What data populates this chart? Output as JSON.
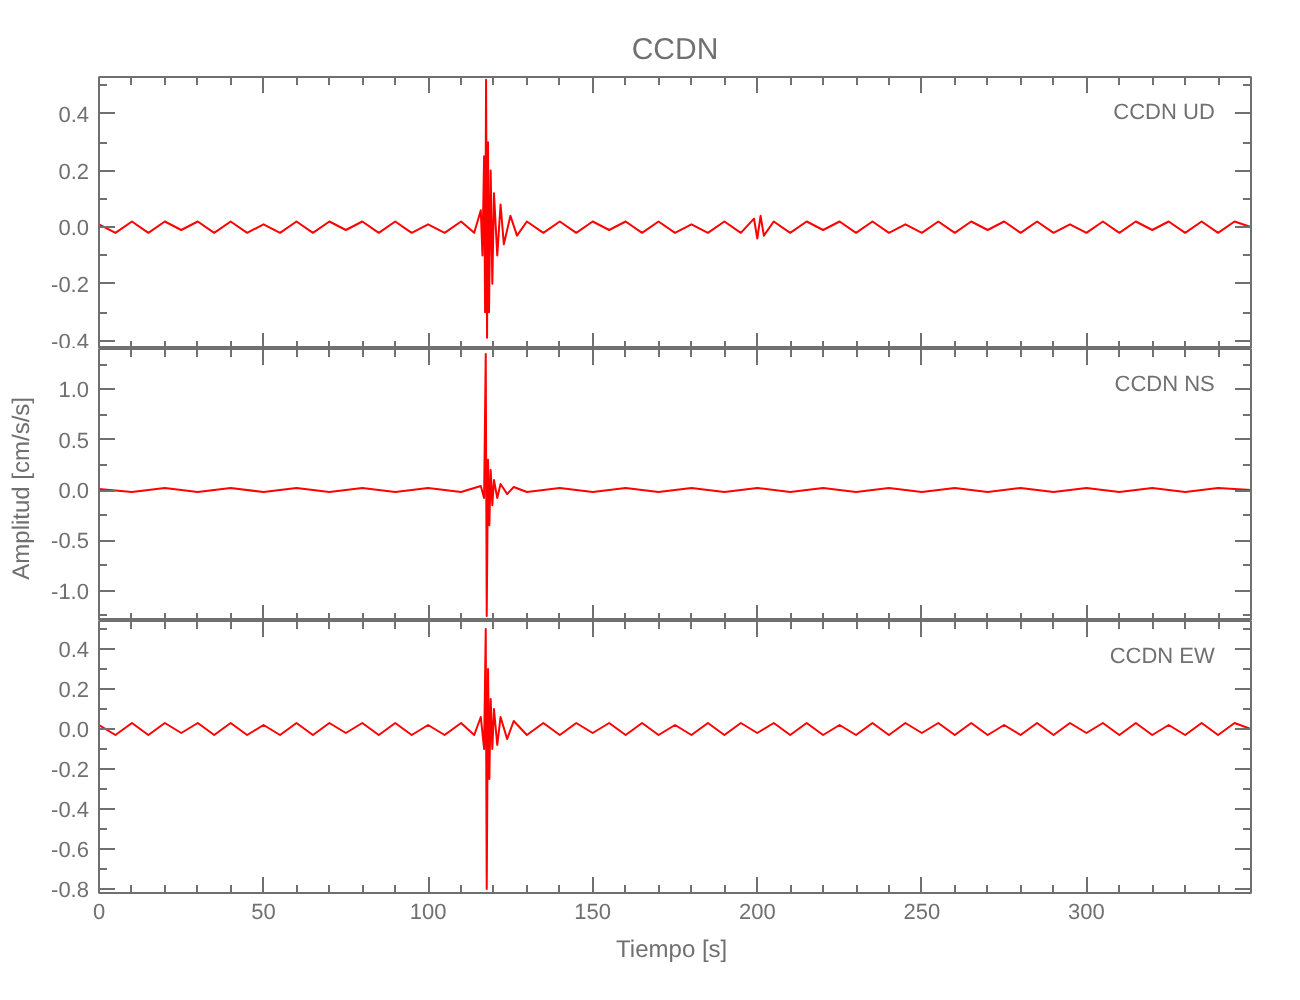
{
  "chart_data": [
    {
      "type": "line",
      "title": "CCDN",
      "annotations": [
        "CCDN   UD"
      ],
      "xlim": [
        0,
        350
      ],
      "xticks": [
        0,
        50,
        100,
        150,
        200,
        250,
        300
      ],
      "ylim": [
        -0.43,
        0.53
      ],
      "yticks": [
        {
          "value": -0.4,
          "label": "-0.4"
        },
        {
          "value": -0.2,
          "label": "-0.2"
        },
        {
          "value": 0,
          "label": "0.0"
        },
        0.2,
        0.4
      ],
      "tick_labels": "y",
      "grid": false,
      "marker": "none",
      "line_style": "solid",
      "series": [
        {
          "color": "#ff0000",
          "x": [
            0,
            5,
            10,
            15,
            20,
            25,
            30,
            35,
            40,
            45,
            50,
            55,
            60,
            65,
            70,
            75,
            80,
            85,
            90,
            95,
            100,
            105,
            110,
            114,
            116,
            116.5,
            117,
            117.3,
            117.6,
            117.9,
            118.2,
            118.5,
            119,
            119.5,
            120,
            121,
            122,
            123,
            125,
            127,
            130,
            135,
            140,
            145,
            150,
            155,
            160,
            165,
            170,
            175,
            180,
            185,
            190,
            195,
            199,
            200,
            201,
            202,
            205,
            210,
            215,
            220,
            225,
            230,
            235,
            240,
            245,
            250,
            255,
            260,
            265,
            270,
            275,
            280,
            285,
            290,
            295,
            300,
            305,
            310,
            315,
            320,
            325,
            330,
            335,
            340,
            345,
            350
          ],
          "values": [
            0.01,
            -0.02,
            0.02,
            -0.02,
            0.02,
            -0.01,
            0.02,
            -0.02,
            0.02,
            -0.02,
            0.01,
            -0.02,
            0.02,
            -0.02,
            0.02,
            -0.01,
            0.02,
            -0.02,
            0.02,
            -0.02,
            0.01,
            -0.02,
            0.02,
            -0.02,
            0.06,
            -0.1,
            0.25,
            -0.3,
            0.52,
            -0.39,
            0.3,
            -0.3,
            0.2,
            -0.2,
            0.12,
            -0.1,
            0.08,
            -0.06,
            0.04,
            -0.03,
            0.02,
            -0.02,
            0.02,
            -0.02,
            0.02,
            -0.01,
            0.02,
            -0.02,
            0.02,
            -0.02,
            0.01,
            -0.02,
            0.02,
            -0.02,
            0.03,
            -0.04,
            0.04,
            -0.03,
            0.02,
            -0.02,
            0.02,
            -0.01,
            0.02,
            -0.02,
            0.02,
            -0.02,
            0.01,
            -0.02,
            0.02,
            -0.02,
            0.02,
            -0.01,
            0.02,
            -0.02,
            0.02,
            -0.02,
            0.01,
            -0.02,
            0.02,
            -0.02,
            0.02,
            -0.01,
            0.02,
            -0.02,
            0.02,
            -0.02,
            0.02,
            0.0
          ]
        }
      ]
    },
    {
      "type": "line",
      "ylabel": "Amplitud  [cm/s/s]",
      "annotations": [
        "CCDN   NS"
      ],
      "xlim": [
        0,
        350
      ],
      "xticks": [
        0,
        50,
        100,
        150,
        200,
        250,
        300
      ],
      "ylim": [
        -1.3,
        1.4
      ],
      "yticks": [
        {
          "value": -1,
          "label": "-1.0"
        },
        -0.5,
        {
          "value": 0,
          "label": "0.0"
        },
        0.5,
        {
          "value": 1,
          "label": "1.0"
        }
      ],
      "tick_labels": "y",
      "grid": false,
      "marker": "none",
      "line_style": "solid",
      "series": [
        {
          "color": "#ff0000",
          "x": [
            0,
            10,
            20,
            30,
            40,
            50,
            60,
            70,
            80,
            90,
            100,
            110,
            116,
            117,
            117.5,
            117.8,
            118.2,
            118.6,
            119,
            119.5,
            120,
            121,
            122,
            124,
            126,
            130,
            140,
            150,
            160,
            170,
            180,
            190,
            200,
            210,
            220,
            230,
            240,
            250,
            260,
            270,
            280,
            290,
            300,
            310,
            320,
            330,
            340,
            350
          ],
          "values": [
            0.01,
            -0.02,
            0.02,
            -0.02,
            0.02,
            -0.02,
            0.02,
            -0.02,
            0.02,
            -0.02,
            0.02,
            -0.02,
            0.04,
            -0.08,
            1.35,
            -1.25,
            0.3,
            -0.35,
            0.2,
            -0.15,
            0.1,
            -0.08,
            0.06,
            -0.04,
            0.03,
            -0.02,
            0.02,
            -0.02,
            0.02,
            -0.02,
            0.02,
            -0.02,
            0.02,
            -0.02,
            0.02,
            -0.02,
            0.02,
            -0.02,
            0.02,
            -0.02,
            0.02,
            -0.02,
            0.02,
            -0.02,
            0.02,
            -0.02,
            0.02,
            0.0
          ]
        }
      ]
    },
    {
      "type": "line",
      "xlabel": "Tiempo  [s]",
      "annotations": [
        "CCDN   EW"
      ],
      "xlim": [
        0,
        350
      ],
      "xticks": [
        0,
        50,
        100,
        150,
        200,
        250,
        300
      ],
      "ylim": [
        -0.82,
        0.54
      ],
      "yticks": [
        {
          "value": -0.8,
          "label": "-0.8"
        },
        {
          "value": -0.6,
          "label": "-0.6"
        },
        {
          "value": -0.4,
          "label": "-0.4"
        },
        {
          "value": -0.2,
          "label": "-0.2"
        },
        {
          "value": 0,
          "label": "0.0"
        },
        0.2,
        0.4
      ],
      "grid": false,
      "marker": "none",
      "line_style": "solid",
      "series": [
        {
          "color": "#ff0000",
          "x": [
            0,
            5,
            10,
            15,
            20,
            25,
            30,
            35,
            40,
            45,
            50,
            55,
            60,
            65,
            70,
            75,
            80,
            85,
            90,
            95,
            100,
            105,
            110,
            114,
            116,
            117,
            117.5,
            117.8,
            118.2,
            118.6,
            119,
            119.5,
            120,
            121,
            122,
            124,
            126,
            130,
            135,
            140,
            145,
            150,
            155,
            160,
            165,
            170,
            175,
            180,
            185,
            190,
            195,
            200,
            205,
            210,
            215,
            220,
            225,
            230,
            235,
            240,
            245,
            250,
            255,
            260,
            265,
            270,
            275,
            280,
            285,
            290,
            295,
            300,
            305,
            310,
            315,
            320,
            325,
            330,
            335,
            340,
            345,
            350
          ],
          "values": [
            0.02,
            -0.03,
            0.03,
            -0.03,
            0.03,
            -0.02,
            0.03,
            -0.03,
            0.03,
            -0.03,
            0.02,
            -0.03,
            0.03,
            -0.03,
            0.03,
            -0.02,
            0.03,
            -0.03,
            0.03,
            -0.03,
            0.02,
            -0.03,
            0.03,
            -0.03,
            0.06,
            -0.1,
            0.5,
            -0.8,
            0.3,
            -0.25,
            0.15,
            -0.1,
            0.1,
            -0.08,
            0.06,
            -0.05,
            0.04,
            -0.03,
            0.03,
            -0.03,
            0.03,
            -0.02,
            0.03,
            -0.03,
            0.03,
            -0.03,
            0.02,
            -0.03,
            0.03,
            -0.03,
            0.03,
            -0.02,
            0.03,
            -0.03,
            0.03,
            -0.03,
            0.02,
            -0.03,
            0.03,
            -0.03,
            0.03,
            -0.02,
            0.03,
            -0.03,
            0.03,
            -0.03,
            0.02,
            -0.03,
            0.03,
            -0.03,
            0.03,
            -0.02,
            0.03,
            -0.03,
            0.03,
            -0.03,
            0.02,
            -0.03,
            0.03,
            -0.03,
            0.03,
            0.0
          ]
        }
      ]
    }
  ]
}
